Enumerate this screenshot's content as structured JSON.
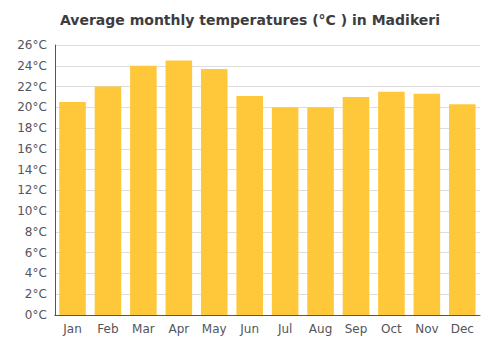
{
  "chart_data": {
    "type": "bar",
    "title": "Average monthly temperatures (°C ) in Madikeri",
    "categories": [
      "Jan",
      "Feb",
      "Mar",
      "Apr",
      "May",
      "Jun",
      "Jul",
      "Aug",
      "Sep",
      "Oct",
      "Nov",
      "Dec"
    ],
    "values": [
      20.5,
      22.0,
      24.0,
      24.5,
      23.7,
      21.1,
      20.0,
      20.0,
      21.0,
      21.5,
      21.3,
      20.3
    ],
    "color": "#FFC83A",
    "ylim": [
      0,
      26
    ],
    "yticks": [
      {
        "value": 0,
        "label": "0°C"
      },
      {
        "value": 2,
        "label": "2°C"
      },
      {
        "value": 4,
        "label": "4°C"
      },
      {
        "value": 6,
        "label": "6°C"
      },
      {
        "value": 8,
        "label": "8°C"
      },
      {
        "value": 10,
        "label": "10°C"
      },
      {
        "value": 12,
        "label": "12°C"
      },
      {
        "value": 14,
        "label": "14°C"
      },
      {
        "value": 16,
        "label": "16°C"
      },
      {
        "value": 18,
        "label": "18°C"
      },
      {
        "value": 20,
        "label": "20°C"
      },
      {
        "value": 22,
        "label": "22°C"
      },
      {
        "value": 24,
        "label": "24°C"
      },
      {
        "value": 26,
        "label": "26°C"
      }
    ],
    "grid": true
  }
}
